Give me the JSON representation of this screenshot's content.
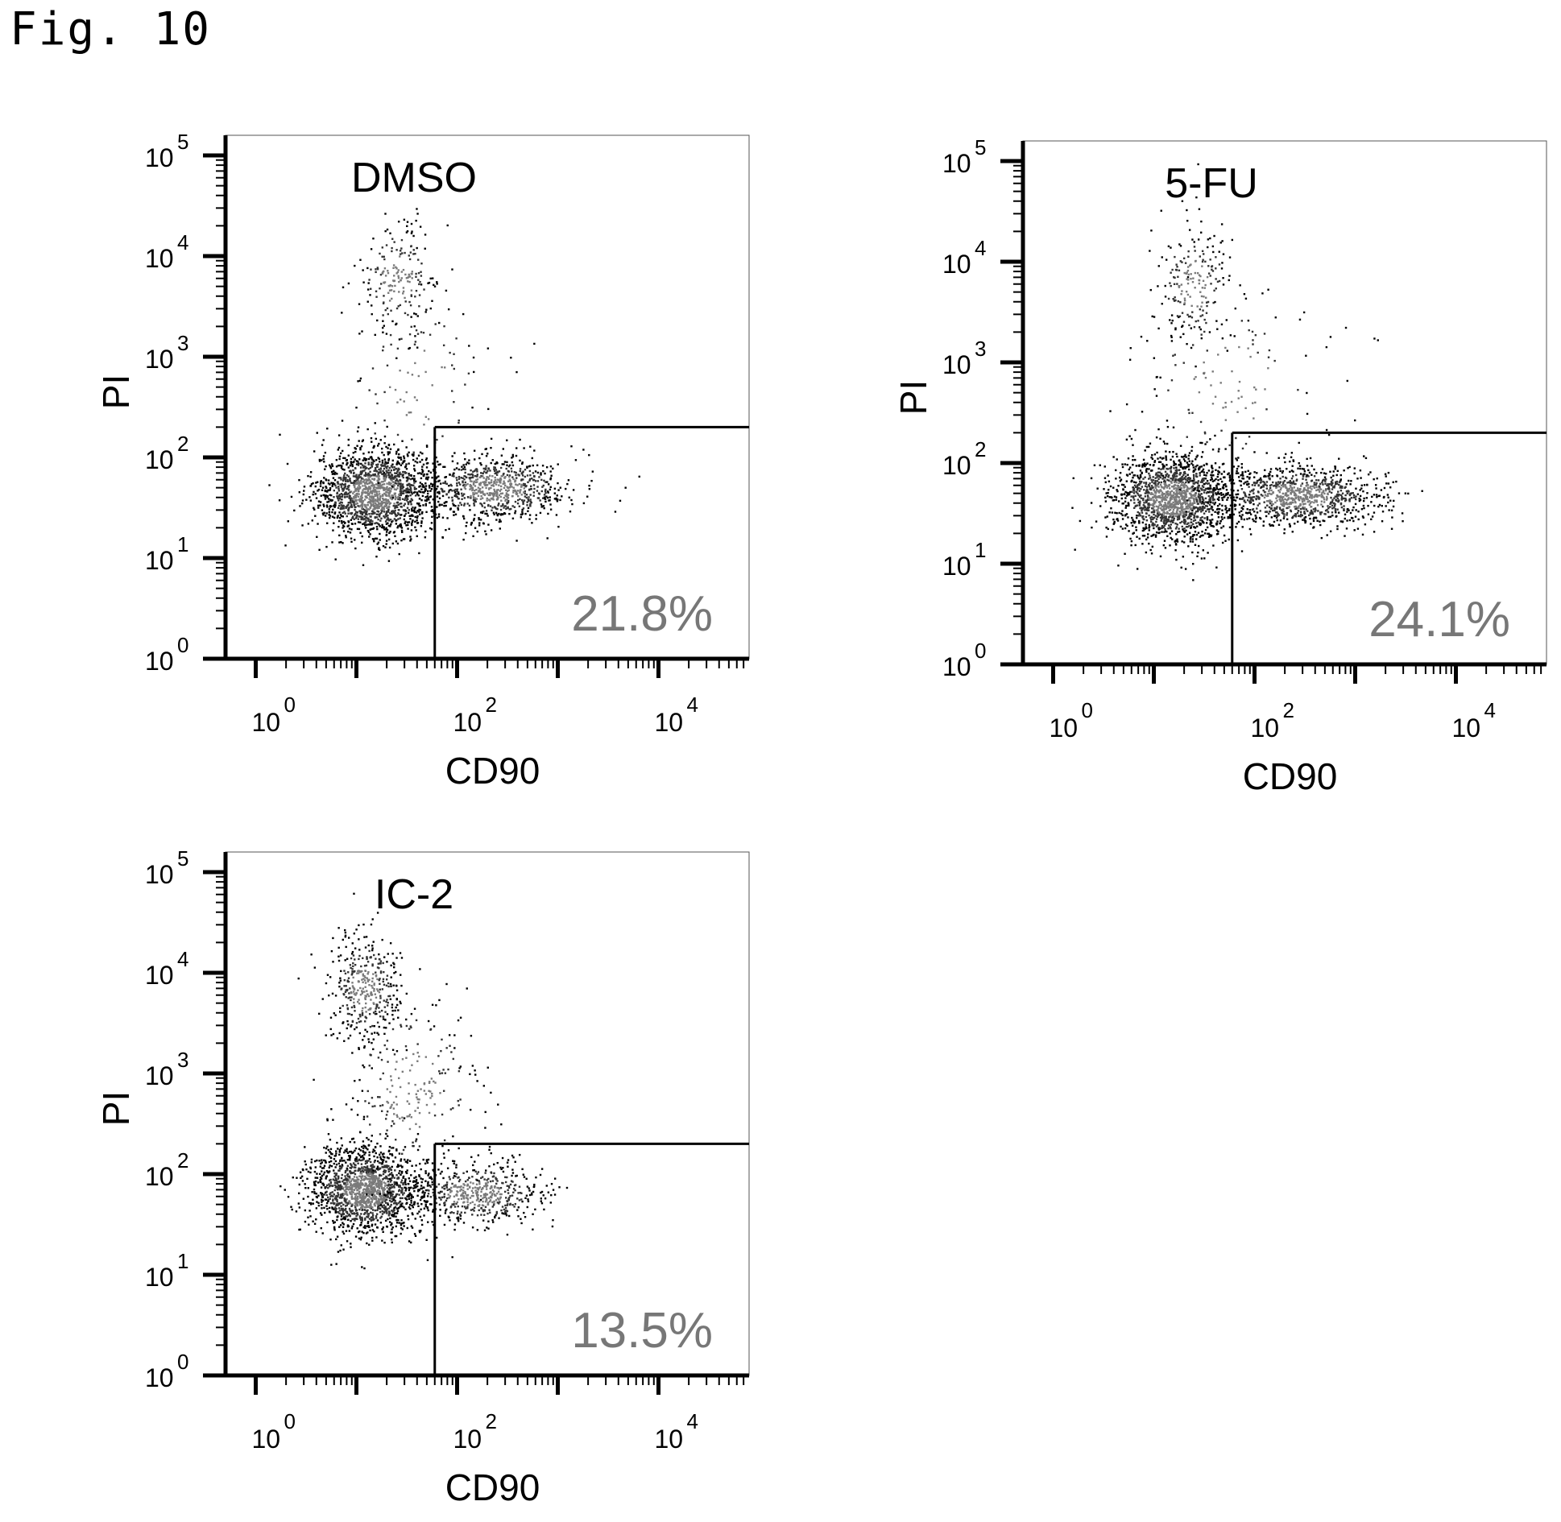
{
  "figure": {
    "label": "Fig. 10"
  },
  "chart_data": [
    {
      "type": "scatter",
      "title": "DMSO",
      "xlabel": "CD90",
      "ylabel": "PI",
      "x_scale": "log",
      "y_scale": "log",
      "x_ticks": [
        "10^0",
        "10^2",
        "10^4"
      ],
      "y_ticks": [
        "10^0",
        "10^1",
        "10^2",
        "10^3",
        "10^4",
        "10^5"
      ],
      "gate": {
        "x_min": 60,
        "y_max": 200
      },
      "gate_percent": "21.8%",
      "populations": [
        {
          "cx": 15,
          "cy": 45,
          "sx": 0.3,
          "sy": 0.22,
          "n": 1600
        },
        {
          "cx": 230,
          "cy": 50,
          "sx": 0.38,
          "sy": 0.17,
          "n": 800
        },
        {
          "cx": 25,
          "cy": 6000,
          "sx": 0.2,
          "sy": 0.3,
          "n": 200
        },
        {
          "cx": 40,
          "cy": 500,
          "sx": 0.4,
          "sy": 0.5,
          "n": 100
        }
      ]
    },
    {
      "type": "scatter",
      "title": "5-FU",
      "xlabel": "CD90",
      "ylabel": "PI",
      "x_scale": "log",
      "y_scale": "log",
      "x_ticks": [
        "10^0",
        "10^2",
        "10^4"
      ],
      "y_ticks": [
        "10^0",
        "10^1",
        "10^2",
        "10^3",
        "10^4",
        "10^5"
      ],
      "gate": {
        "x_min": 60,
        "y_max": 200
      },
      "gate_percent": "24.1%",
      "populations": [
        {
          "cx": 15,
          "cy": 45,
          "sx": 0.3,
          "sy": 0.22,
          "n": 1600
        },
        {
          "cx": 260,
          "cy": 48,
          "sx": 0.42,
          "sy": 0.15,
          "n": 1000
        },
        {
          "cx": 25,
          "cy": 6000,
          "sx": 0.2,
          "sy": 0.3,
          "n": 210
        },
        {
          "cx": 60,
          "cy": 600,
          "sx": 0.5,
          "sy": 0.5,
          "n": 130
        }
      ]
    },
    {
      "type": "scatter",
      "title": "IC-2",
      "xlabel": "CD90",
      "ylabel": "PI",
      "x_scale": "log",
      "y_scale": "log",
      "x_ticks": [
        "10^0",
        "10^2",
        "10^4"
      ],
      "y_ticks": [
        "10^0",
        "10^1",
        "10^2",
        "10^3",
        "10^4",
        "10^5"
      ],
      "gate": {
        "x_min": 60,
        "y_max": 200
      },
      "gate_percent": "13.5%",
      "populations": [
        {
          "cx": 12,
          "cy": 70,
          "sx": 0.28,
          "sy": 0.22,
          "n": 1600
        },
        {
          "cx": 150,
          "cy": 65,
          "sx": 0.35,
          "sy": 0.16,
          "n": 550
        },
        {
          "cx": 12,
          "cy": 7000,
          "sx": 0.18,
          "sy": 0.28,
          "n": 380
        },
        {
          "cx": 35,
          "cy": 700,
          "sx": 0.35,
          "sy": 0.5,
          "n": 250
        }
      ]
    }
  ]
}
